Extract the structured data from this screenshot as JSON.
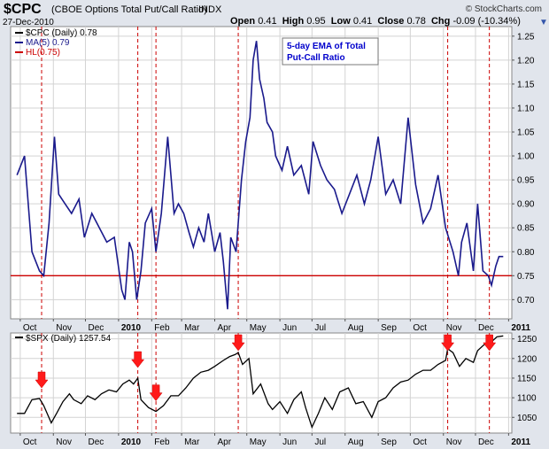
{
  "header": {
    "symbol": "$CPC",
    "name": "(CBOE Options Total Put/Call Ratio)",
    "exchange": "INDX",
    "date": "27-Dec-2010",
    "copyright": "© StockCharts.com",
    "open_label": "Open",
    "open": "0.41",
    "high_label": "High",
    "high": "0.95",
    "low_label": "Low",
    "low": "0.41",
    "close_label": "Close",
    "close": "0.78",
    "chg_label": "Chg",
    "chg": "-0.09 (-10.34%)"
  },
  "top_legend": [
    {
      "text": "$CPC (Daily) 0.78",
      "color": "#000000"
    },
    {
      "text": "MA(5) 0.79",
      "color": "#1a1a8c"
    },
    {
      "text": "HL(0.75)",
      "color": "#cc0000"
    }
  ],
  "annotation": {
    "line1": "5-day EMA of Total",
    "line2": "Put-Call Ratio",
    "color": "#0000cc"
  },
  "bottom_legend": {
    "text": "$SPX (Daily) 1257.54",
    "color": "#000000"
  },
  "colors": {
    "ma_line": "#1a1a8c",
    "spx_line": "#000000",
    "hline": "#cc0000",
    "vlines": "#cc0000",
    "arrows": "#ff1a1a",
    "panel_bg": "#ffffff",
    "grid": "#d3d3d3"
  },
  "chart_data": [
    {
      "type": "line",
      "title": "$CPC (Daily) 0.78",
      "x_ticks": [
        "Oct",
        "Nov",
        "Dec",
        "2010",
        "Feb",
        "Mar",
        "Apr",
        "May",
        "Jun",
        "Jul",
        "Aug",
        "Sep",
        "Oct",
        "Nov",
        "Dec",
        "2011"
      ],
      "ylim": [
        0.66,
        1.27
      ],
      "y_ticks": [
        0.7,
        0.75,
        0.8,
        0.85,
        0.9,
        0.95,
        1.0,
        1.05,
        1.1,
        1.15,
        1.2,
        1.25
      ],
      "horizontal_line": 0.75,
      "grid": true,
      "series": [
        {
          "name": "MA(5) 0.79",
          "x": [
            "2009-09-28",
            "2009-10-05",
            "2009-10-12",
            "2009-10-19",
            "2009-10-23",
            "2009-10-28",
            "2009-11-02",
            "2009-11-06",
            "2009-11-12",
            "2009-11-18",
            "2009-11-25",
            "2009-11-30",
            "2009-12-07",
            "2009-12-14",
            "2009-12-21",
            "2009-12-28",
            "2010-01-04",
            "2010-01-07",
            "2010-01-11",
            "2010-01-14",
            "2010-01-18",
            "2010-01-22",
            "2010-01-26",
            "2010-02-01",
            "2010-02-05",
            "2010-02-10",
            "2010-02-16",
            "2010-02-22",
            "2010-02-26",
            "2010-03-03",
            "2010-03-08",
            "2010-03-12",
            "2010-03-17",
            "2010-03-22",
            "2010-03-26",
            "2010-04-01",
            "2010-04-06",
            "2010-04-09",
            "2010-04-13",
            "2010-04-16",
            "2010-04-21",
            "2010-04-26",
            "2010-04-30",
            "2010-05-04",
            "2010-05-07",
            "2010-05-10",
            "2010-05-13",
            "2010-05-17",
            "2010-05-20",
            "2010-05-25",
            "2010-05-28",
            "2010-06-03",
            "2010-06-08",
            "2010-06-14",
            "2010-06-21",
            "2010-06-28",
            "2010-07-02",
            "2010-07-09",
            "2010-07-15",
            "2010-07-22",
            "2010-07-29",
            "2010-08-05",
            "2010-08-12",
            "2010-08-19",
            "2010-08-25",
            "2010-09-01",
            "2010-09-08",
            "2010-09-15",
            "2010-09-22",
            "2010-09-29",
            "2010-10-06",
            "2010-10-13",
            "2010-10-20",
            "2010-10-27",
            "2010-11-03",
            "2010-11-10",
            "2010-11-15",
            "2010-11-18",
            "2010-11-23",
            "2010-11-29",
            "2010-12-03",
            "2010-12-08",
            "2010-12-13",
            "2010-12-16",
            "2010-12-20",
            "2010-12-23",
            "2010-12-27"
          ],
          "values": [
            0.96,
            1.0,
            0.8,
            0.76,
            0.75,
            0.86,
            1.04,
            0.92,
            0.9,
            0.88,
            0.91,
            0.83,
            0.88,
            0.85,
            0.82,
            0.83,
            0.72,
            0.7,
            0.82,
            0.8,
            0.7,
            0.76,
            0.86,
            0.89,
            0.8,
            0.88,
            1.04,
            0.88,
            0.9,
            0.88,
            0.84,
            0.81,
            0.85,
            0.82,
            0.88,
            0.8,
            0.84,
            0.78,
            0.68,
            0.83,
            0.8,
            0.95,
            1.03,
            1.08,
            1.2,
            1.24,
            1.16,
            1.12,
            1.07,
            1.05,
            1.0,
            0.97,
            1.02,
            0.96,
            0.98,
            0.92,
            1.03,
            0.98,
            0.95,
            0.93,
            0.88,
            0.92,
            0.96,
            0.9,
            0.95,
            1.04,
            0.92,
            0.95,
            0.9,
            1.08,
            0.94,
            0.86,
            0.89,
            0.96,
            0.85,
            0.8,
            0.75,
            0.82,
            0.86,
            0.76,
            0.9,
            0.76,
            0.75,
            0.73,
            0.77,
            0.79,
            0.79
          ]
        }
      ]
    },
    {
      "type": "line",
      "title": "$SPX (Daily) 1257.54",
      "x_ticks": [
        "Oct",
        "Nov",
        "Dec",
        "2010",
        "Feb",
        "Mar",
        "Apr",
        "May",
        "Jun",
        "Jul",
        "Aug",
        "Sep",
        "Oct",
        "Nov",
        "Dec",
        "2011"
      ],
      "ylim": [
        1010,
        1265
      ],
      "y_ticks": [
        1050,
        1100,
        1150,
        1200,
        1250
      ],
      "grid": true,
      "series": [
        {
          "name": "$SPX (Daily) 1257.54",
          "x": [
            "2009-09-28",
            "2009-10-05",
            "2009-10-12",
            "2009-10-19",
            "2009-10-23",
            "2009-10-30",
            "2009-11-04",
            "2009-11-10",
            "2009-11-16",
            "2009-11-20",
            "2009-11-27",
            "2009-12-03",
            "2009-12-10",
            "2009-12-16",
            "2009-12-23",
            "2009-12-30",
            "2010-01-05",
            "2010-01-11",
            "2010-01-15",
            "2010-01-19",
            "2010-01-22",
            "2010-01-29",
            "2010-02-05",
            "2010-02-12",
            "2010-02-19",
            "2010-02-26",
            "2010-03-05",
            "2010-03-12",
            "2010-03-19",
            "2010-03-26",
            "2010-04-01",
            "2010-04-09",
            "2010-04-15",
            "2010-04-20",
            "2010-04-23",
            "2010-04-27",
            "2010-05-03",
            "2010-05-07",
            "2010-05-14",
            "2010-05-21",
            "2010-05-25",
            "2010-06-01",
            "2010-06-08",
            "2010-06-14",
            "2010-06-21",
            "2010-06-25",
            "2010-07-01",
            "2010-07-07",
            "2010-07-13",
            "2010-07-20",
            "2010-07-27",
            "2010-08-04",
            "2010-08-11",
            "2010-08-18",
            "2010-08-26",
            "2010-09-01",
            "2010-09-08",
            "2010-09-15",
            "2010-09-22",
            "2010-09-29",
            "2010-10-06",
            "2010-10-13",
            "2010-10-20",
            "2010-10-27",
            "2010-11-03",
            "2010-11-05",
            "2010-11-10",
            "2010-11-16",
            "2010-11-22",
            "2010-11-29",
            "2010-12-03",
            "2010-12-09",
            "2010-12-15",
            "2010-12-21",
            "2010-12-27"
          ],
          "values": [
            1060,
            1060,
            1095,
            1098,
            1080,
            1036,
            1060,
            1090,
            1110,
            1095,
            1085,
            1105,
            1095,
            1110,
            1120,
            1115,
            1135,
            1145,
            1135,
            1150,
            1095,
            1075,
            1065,
            1080,
            1105,
            1105,
            1125,
            1150,
            1165,
            1170,
            1180,
            1195,
            1205,
            1210,
            1215,
            1185,
            1200,
            1110,
            1135,
            1085,
            1070,
            1090,
            1060,
            1095,
            1115,
            1075,
            1025,
            1060,
            1100,
            1070,
            1115,
            1125,
            1085,
            1090,
            1050,
            1090,
            1100,
            1125,
            1140,
            1145,
            1160,
            1170,
            1170,
            1185,
            1195,
            1225,
            1215,
            1180,
            1200,
            1190,
            1220,
            1235,
            1240,
            1255,
            1257.54
          ]
        }
      ]
    }
  ]
}
